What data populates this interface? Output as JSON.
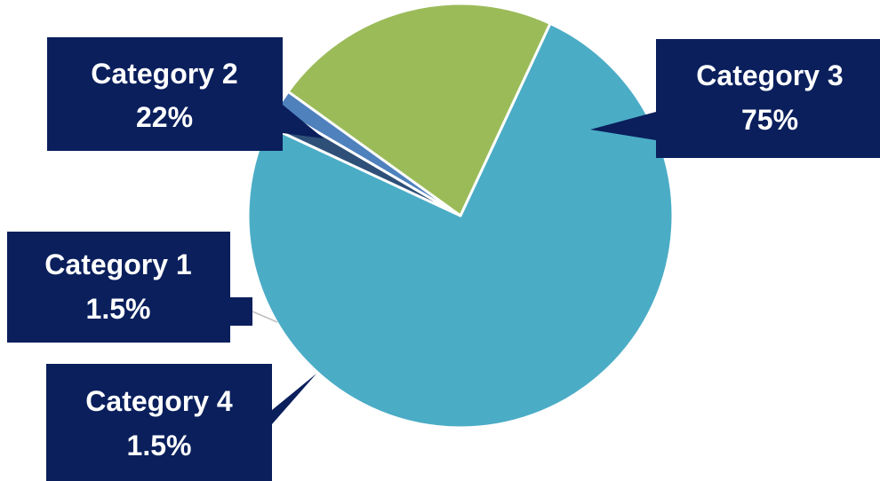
{
  "chart_data": {
    "type": "pie",
    "slices": [
      {
        "name": "Category 3",
        "label": "75%",
        "value": 75,
        "color": "#4BACC6"
      },
      {
        "name": "Category 4",
        "label": "1.5%",
        "value": 1.5,
        "color": "#2E5078"
      },
      {
        "name": "Category 1",
        "label": "1.5%",
        "value": 1.5,
        "color": "#4F81BD"
      },
      {
        "name": "Category 2",
        "label": "22%",
        "value": 22,
        "color": "#9BBB59"
      }
    ],
    "callout_fill": "#0A1F5C",
    "slice_border": "#ffffff"
  }
}
